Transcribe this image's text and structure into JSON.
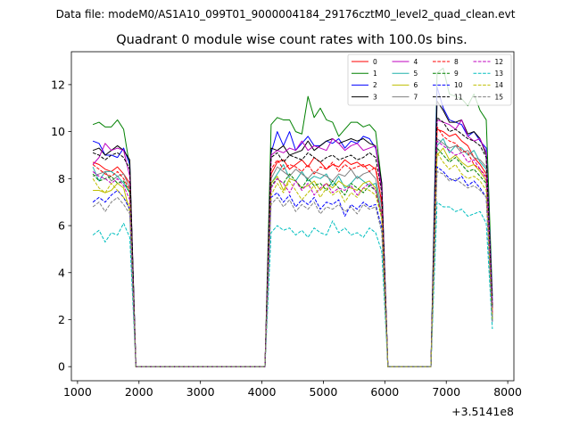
{
  "suptitle": "Data file: modeM0/AS1A10_099T01_9000004184_29176cztM0_level2_quad_clean.evt",
  "chart_data": {
    "type": "line",
    "title": "Quadrant 0 module wise count rates with 100.0s bins.",
    "xlabel": "",
    "ylabel": "",
    "x_offset_label": "+3.5141e8",
    "xlim": [
      900,
      8100
    ],
    "ylim": [
      -0.6,
      13.4
    ],
    "xticks": [
      1000,
      2000,
      3000,
      4000,
      5000,
      6000,
      7000,
      8000
    ],
    "yticks": [
      0,
      2,
      4,
      6,
      8,
      10,
      12
    ],
    "legend_location": "top-right",
    "legend_columns": 4,
    "x": [
      1250,
      1350,
      1450,
      1550,
      1650,
      1750,
      1850,
      1950,
      2050,
      4050,
      4150,
      4250,
      4350,
      4450,
      4550,
      4650,
      4750,
      4850,
      4950,
      5050,
      5150,
      5250,
      5350,
      5450,
      5550,
      5650,
      5750,
      5850,
      5950,
      6050,
      6150,
      6750,
      6850,
      6950,
      7050,
      7150,
      7250,
      7350,
      7450,
      7550,
      7650,
      7750
    ],
    "series": [
      {
        "name": "0",
        "color": "#ff0000",
        "dash": "solid",
        "values": [
          8.7,
          8.6,
          8.4,
          8.3,
          8.5,
          8.2,
          7.8,
          0,
          0,
          0,
          8.2,
          8.7,
          8.8,
          8.4,
          8.6,
          8.8,
          8.5,
          8.9,
          8.7,
          8.4,
          8.6,
          8.5,
          8.8,
          8.6,
          8.7,
          8.5,
          8.6,
          8.4,
          7.0,
          0,
          0,
          0,
          10.1,
          10.0,
          9.8,
          9.9,
          9.6,
          9.4,
          8.9,
          8.6,
          8.2,
          2.3
        ]
      },
      {
        "name": "1",
        "color": "#008000",
        "dash": "solid",
        "values": [
          10.3,
          10.4,
          10.2,
          10.2,
          10.5,
          10.1,
          8.5,
          0,
          0,
          0,
          10.3,
          10.6,
          10.5,
          10.5,
          10.0,
          9.9,
          11.5,
          10.6,
          11.0,
          10.5,
          10.4,
          9.8,
          10.1,
          10.4,
          10.4,
          10.2,
          10.3,
          10.0,
          7.8,
          0,
          0,
          0,
          12.5,
          12.7,
          11.6,
          11.5,
          11.4,
          11.1,
          11.6,
          10.9,
          10.5,
          3.0
        ]
      },
      {
        "name": "2",
        "color": "#0000ff",
        "dash": "solid",
        "values": [
          9.6,
          9.5,
          9.0,
          9.0,
          8.9,
          9.3,
          8.6,
          0,
          0,
          0,
          9.1,
          10.0,
          9.4,
          10.0,
          9.2,
          9.5,
          9.8,
          9.4,
          9.4,
          9.6,
          9.5,
          9.7,
          9.3,
          9.6,
          9.5,
          9.8,
          9.7,
          9.3,
          7.8,
          0,
          0,
          0,
          11.9,
          11.0,
          10.5,
          10.4,
          10.3,
          9.8,
          10.0,
          9.6,
          9.3,
          2.8
        ]
      },
      {
        "name": "3",
        "color": "#000000",
        "dash": "solid",
        "values": [
          9.2,
          9.3,
          9.0,
          9.2,
          9.4,
          9.2,
          8.8,
          0,
          0,
          0,
          9.3,
          9.2,
          9.4,
          9.0,
          9.1,
          9.2,
          9.6,
          9.2,
          9.4,
          9.6,
          9.7,
          9.5,
          9.6,
          9.7,
          9.6,
          9.7,
          9.5,
          9.4,
          7.8,
          0,
          0,
          0,
          11.3,
          10.9,
          10.4,
          10.4,
          10.5,
          9.9,
          10.0,
          9.7,
          9.0,
          2.5
        ]
      },
      {
        "name": "4",
        "color": "#bf00bf",
        "dash": "solid",
        "values": [
          8.6,
          8.9,
          9.5,
          9.2,
          9.3,
          9.2,
          8.1,
          0,
          0,
          0,
          9.0,
          9.2,
          9.1,
          9.3,
          9.2,
          9.6,
          9.2,
          9.4,
          9.3,
          9.2,
          9.7,
          9.5,
          9.2,
          9.4,
          9.5,
          9.2,
          9.3,
          9.4,
          7.5,
          0,
          0,
          0,
          10.5,
          10.4,
          10.3,
          10.1,
          10.5,
          9.8,
          9.6,
          9.7,
          9.1,
          2.6
        ]
      },
      {
        "name": "5",
        "color": "#20b2aa",
        "dash": "solid",
        "values": [
          8.5,
          7.9,
          8.3,
          8.3,
          8.1,
          7.8,
          7.4,
          0,
          0,
          0,
          7.8,
          8.2,
          8.6,
          8.0,
          7.9,
          8.3,
          7.9,
          8.1,
          8.0,
          8.2,
          7.7,
          8.1,
          7.6,
          7.8,
          8.1,
          7.9,
          7.7,
          7.8,
          6.5,
          0,
          0,
          0,
          9.4,
          9.7,
          9.1,
          9.4,
          9.3,
          9.0,
          9.2,
          8.7,
          8.4,
          2.0
        ]
      },
      {
        "name": "6",
        "color": "#bfbf00",
        "dash": "solid",
        "values": [
          7.5,
          7.5,
          7.4,
          7.5,
          7.8,
          7.6,
          6.6,
          0,
          0,
          0,
          7.8,
          8.1,
          7.5,
          8.0,
          7.9,
          7.6,
          7.7,
          7.9,
          7.5,
          7.8,
          7.6,
          7.9,
          7.7,
          7.6,
          7.5,
          7.8,
          7.9,
          7.6,
          6.4,
          0,
          0,
          0,
          9.0,
          9.3,
          8.8,
          9.0,
          8.7,
          8.5,
          8.6,
          8.3,
          7.9,
          2.2
        ]
      },
      {
        "name": "7",
        "color": "#808080",
        "dash": "solid",
        "values": [
          8.1,
          8.2,
          8.3,
          7.9,
          8.1,
          8.2,
          7.6,
          0,
          0,
          0,
          8.0,
          8.5,
          8.3,
          8.1,
          8.4,
          8.2,
          8.0,
          8.3,
          8.2,
          8.1,
          7.9,
          8.2,
          8.1,
          8.4,
          8.0,
          8.2,
          8.3,
          8.0,
          6.8,
          0,
          0,
          0,
          9.7,
          9.5,
          9.3,
          9.4,
          9.1,
          9.2,
          8.9,
          8.8,
          8.5,
          2.1
        ]
      },
      {
        "name": "8",
        "color": "#ff0000",
        "dash": "dashed",
        "values": [
          8.6,
          8.4,
          8.2,
          8.1,
          8.3,
          8.0,
          7.5,
          0,
          0,
          0,
          8.4,
          8.8,
          8.4,
          8.6,
          8.5,
          8.3,
          8.6,
          8.2,
          8.5,
          8.4,
          8.7,
          8.3,
          8.6,
          8.4,
          8.5,
          8.6,
          8.3,
          8.5,
          7.0,
          0,
          0,
          0,
          10.2,
          9.8,
          9.6,
          9.5,
          9.2,
          9.1,
          8.6,
          8.4,
          8.1,
          2.3
        ]
      },
      {
        "name": "9",
        "color": "#008000",
        "dash": "dashed",
        "values": [
          8.2,
          7.9,
          8.0,
          8.1,
          7.8,
          7.9,
          7.4,
          0,
          0,
          0,
          7.7,
          8.0,
          7.8,
          8.2,
          7.9,
          7.6,
          8.0,
          7.7,
          7.8,
          7.5,
          7.9,
          7.6,
          7.3,
          7.8,
          7.6,
          7.4,
          7.7,
          7.5,
          6.3,
          0,
          0,
          0,
          9.3,
          9.0,
          8.7,
          8.9,
          8.6,
          8.3,
          8.4,
          8.1,
          7.8,
          2.0
        ]
      },
      {
        "name": "10",
        "color": "#0000ff",
        "dash": "dashed",
        "values": [
          7.0,
          7.2,
          7.0,
          7.3,
          7.5,
          7.2,
          6.7,
          0,
          0,
          0,
          7.2,
          7.4,
          7.0,
          7.3,
          6.8,
          7.1,
          6.9,
          7.2,
          6.7,
          7.0,
          6.9,
          7.1,
          6.4,
          6.9,
          6.7,
          7.0,
          6.8,
          6.9,
          5.9,
          0,
          0,
          0,
          8.5,
          8.3,
          8.0,
          7.9,
          8.1,
          7.7,
          7.9,
          7.6,
          7.2,
          1.9
        ]
      },
      {
        "name": "11",
        "color": "#000000",
        "dash": "dashed",
        "values": [
          9.1,
          9.0,
          8.8,
          9.0,
          9.1,
          8.9,
          8.4,
          0,
          0,
          0,
          8.9,
          9.1,
          8.7,
          9.0,
          8.9,
          8.8,
          9.1,
          8.9,
          8.7,
          8.9,
          9.0,
          8.8,
          8.9,
          9.0,
          8.8,
          8.9,
          9.1,
          8.9,
          7.4,
          0,
          0,
          0,
          10.6,
          10.4,
          10.0,
          10.1,
          9.9,
          9.7,
          9.6,
          9.4,
          8.9,
          2.6
        ]
      },
      {
        "name": "12",
        "color": "#bf00bf",
        "dash": "dashed",
        "values": [
          8.3,
          8.1,
          8.0,
          7.8,
          8.0,
          7.7,
          7.1,
          0,
          0,
          0,
          7.6,
          8.0,
          7.8,
          7.4,
          7.9,
          7.5,
          7.8,
          7.3,
          7.6,
          7.8,
          7.4,
          7.6,
          7.5,
          7.7,
          7.3,
          7.6,
          7.8,
          7.5,
          6.5,
          0,
          0,
          0,
          9.6,
          9.4,
          9.2,
          9.0,
          9.1,
          8.7,
          8.8,
          8.4,
          8.0,
          2.2
        ]
      },
      {
        "name": "13",
        "color": "#00bfbf",
        "dash": "dashed",
        "values": [
          5.6,
          5.8,
          5.3,
          5.7,
          5.6,
          6.1,
          5.5,
          0,
          0,
          0,
          5.7,
          6.0,
          5.8,
          5.9,
          5.6,
          5.8,
          5.5,
          5.9,
          5.7,
          5.6,
          6.2,
          5.7,
          5.9,
          5.6,
          5.7,
          5.5,
          5.9,
          5.7,
          4.9,
          0,
          0,
          0,
          7.0,
          6.8,
          6.8,
          6.6,
          6.7,
          6.4,
          6.5,
          6.6,
          6.1,
          1.6
        ]
      },
      {
        "name": "14",
        "color": "#bfbf00",
        "dash": "dashed",
        "values": [
          8.0,
          7.6,
          7.4,
          7.8,
          7.5,
          7.2,
          6.9,
          0,
          0,
          0,
          7.3,
          7.8,
          7.4,
          7.9,
          7.5,
          7.1,
          7.4,
          7.7,
          7.2,
          7.6,
          7.3,
          7.5,
          7.0,
          7.4,
          7.2,
          7.6,
          7.5,
          7.3,
          6.3,
          0,
          0,
          0,
          9.1,
          8.7,
          8.4,
          8.6,
          8.2,
          8.0,
          8.1,
          7.9,
          7.5,
          2.0
        ]
      },
      {
        "name": "15",
        "color": "#808080",
        "dash": "dashed",
        "values": [
          6.8,
          7.0,
          6.6,
          7.0,
          7.2,
          6.9,
          6.5,
          0,
          0,
          0,
          6.9,
          7.2,
          6.8,
          7.1,
          6.6,
          6.9,
          6.7,
          7.0,
          6.5,
          6.8,
          6.7,
          6.9,
          6.6,
          6.8,
          6.5,
          6.9,
          6.7,
          6.8,
          5.7,
          0,
          0,
          0,
          8.3,
          8.2,
          7.9,
          8.0,
          7.8,
          7.6,
          7.7,
          7.5,
          7.2,
          1.9
        ]
      }
    ]
  }
}
